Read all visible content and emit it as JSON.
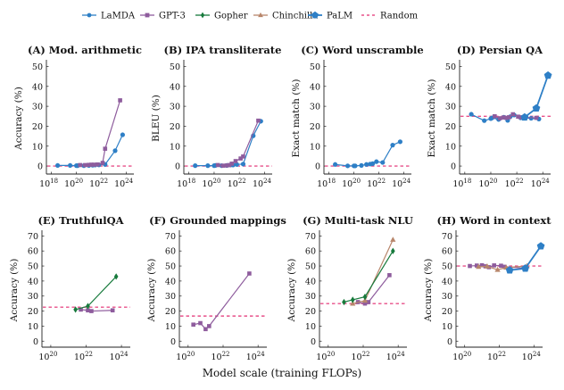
{
  "legend": [
    {
      "name": "LaMDA",
      "color": "#2e7fc6",
      "marker": "circle"
    },
    {
      "name": "GPT-3",
      "color": "#8e5c9d",
      "marker": "square"
    },
    {
      "name": "Gopher",
      "color": "#177a3c",
      "marker": "diamond"
    },
    {
      "name": "Chinchilla",
      "color": "#b8866b",
      "marker": "triangle"
    },
    {
      "name": "PaLM",
      "color": "#2e7fc6",
      "marker": "pentagon"
    },
    {
      "name": "Random",
      "color": "#e8508a",
      "marker": "dashed"
    }
  ],
  "global_xlabel": "Model scale (training FLOPs)",
  "chart_data": [
    {
      "type": "line",
      "title": "(A) Mod. arithmetic",
      "ylabel": "Accuracy (%)",
      "xlabel": "",
      "xscale": "log",
      "xlim_log10": [
        17.6,
        24.6
      ],
      "xticks_log10": [
        18,
        20,
        22,
        24
      ],
      "xtick_labels": [
        "10^18",
        "10^20",
        "10^22",
        "10^24"
      ],
      "ylim": [
        -4,
        52
      ],
      "yticks": [
        0,
        10,
        20,
        30,
        40,
        50
      ],
      "random": 0,
      "series": [
        {
          "name": "LaMDA",
          "x_log10": [
            18.5,
            19.5,
            20.0,
            20.1,
            20.6,
            21.0,
            21.3,
            21.5,
            21.8,
            22.3,
            23.1,
            23.7
          ],
          "y": [
            0.3,
            0.3,
            0.2,
            0.2,
            0.2,
            0.3,
            0.4,
            0.5,
            0.6,
            0.8,
            7.7,
            15.7
          ]
        },
        {
          "name": "GPT-3",
          "x_log10": [
            20.3,
            20.7,
            21.0,
            21.2,
            21.4,
            21.7,
            22.1,
            22.3,
            23.5
          ],
          "y": [
            0.5,
            0.5,
            0.6,
            0.7,
            0.7,
            0.8,
            1.6,
            8.7,
            33.0
          ]
        }
      ]
    },
    {
      "type": "line",
      "title": "(B) IPA transliterate",
      "ylabel": "BLEU (%)",
      "xlabel": "",
      "xscale": "log",
      "xlim_log10": [
        17.6,
        24.6
      ],
      "xticks_log10": [
        18,
        20,
        22,
        24
      ],
      "xtick_labels": [
        "10^18",
        "10^20",
        "10^22",
        "10^24"
      ],
      "ylim": [
        -4,
        52
      ],
      "yticks": [
        0,
        10,
        20,
        30,
        40,
        50
      ],
      "random": 0,
      "series": [
        {
          "name": "LaMDA",
          "x_log10": [
            18.5,
            19.5,
            20.0,
            20.1,
            20.6,
            21.0,
            21.3,
            21.5,
            21.8,
            22.3,
            23.1,
            23.7
          ],
          "y": [
            0.2,
            0.2,
            0.2,
            0.3,
            0.2,
            0.3,
            0.5,
            0.5,
            0.8,
            1.0,
            15.2,
            22.5
          ]
        },
        {
          "name": "GPT-3",
          "x_log10": [
            20.3,
            20.7,
            21.0,
            21.2,
            21.4,
            21.7,
            22.1,
            22.3,
            23.5
          ],
          "y": [
            0.5,
            0.2,
            0.3,
            0.5,
            1.2,
            2.5,
            3.8,
            4.8,
            22.8
          ]
        }
      ]
    },
    {
      "type": "line",
      "title": "(C) Word unscramble",
      "ylabel": "Exact match (%)",
      "xlabel": "",
      "xscale": "log",
      "xlim_log10": [
        17.6,
        24.6
      ],
      "xticks_log10": [
        18,
        20,
        22,
        24
      ],
      "xtick_labels": [
        "10^18",
        "10^20",
        "10^22",
        "10^24"
      ],
      "ylim": [
        -4,
        52
      ],
      "yticks": [
        0,
        10,
        20,
        30,
        40,
        50
      ],
      "random": 0,
      "series": [
        {
          "name": "LaMDA",
          "x_log10": [
            18.5,
            19.5,
            20.0,
            20.1,
            20.6,
            21.0,
            21.3,
            21.5,
            21.8,
            22.3,
            23.1,
            23.7
          ],
          "y": [
            0.8,
            0.1,
            0.1,
            0.1,
            0.3,
            0.8,
            1.0,
            1.2,
            2.2,
            1.8,
            10.5,
            12.2
          ]
        }
      ]
    },
    {
      "type": "line",
      "title": "(D) Persian QA",
      "ylabel": "Exact match (%)",
      "xlabel": "",
      "xscale": "log",
      "xlim_log10": [
        17.6,
        24.6
      ],
      "xticks_log10": [
        18,
        20,
        22,
        24
      ],
      "xtick_labels": [
        "10^18",
        "10^20",
        "10^22",
        "10^24"
      ],
      "ylim": [
        -4,
        52
      ],
      "yticks": [
        0,
        10,
        20,
        30,
        40,
        50
      ],
      "random": 25,
      "series": [
        {
          "name": "LaMDA",
          "x_log10": [
            18.5,
            19.5,
            20.0,
            20.1,
            20.6,
            21.0,
            21.3,
            21.5,
            21.8,
            22.3,
            23.1,
            23.7
          ],
          "y": [
            26.0,
            22.8,
            23.8,
            24.2,
            23.4,
            24.5,
            22.9,
            24.8,
            25.6,
            24.2,
            24.0,
            23.6
          ]
        },
        {
          "name": "GPT-3",
          "x_log10": [
            20.3,
            20.7,
            21.0,
            21.2,
            21.4,
            21.7,
            22.1,
            22.3,
            23.5
          ],
          "y": [
            25.0,
            24.0,
            24.4,
            24.2,
            24.5,
            26.0,
            24.8,
            24.5,
            24.2
          ]
        },
        {
          "name": "PaLM",
          "x_log10": [
            22.6,
            23.5,
            24.4
          ],
          "y": [
            24.5,
            29.0,
            45.5
          ]
        }
      ]
    },
    {
      "type": "line",
      "title": "(E) TruthfulQA",
      "ylabel": "Accuracy (%)",
      "xlabel": "",
      "xscale": "log",
      "xlim_log10": [
        19.5,
        24.5
      ],
      "xticks_log10": [
        20,
        22,
        24
      ],
      "xtick_labels": [
        "10^20",
        "10^22",
        "10^24"
      ],
      "ylim": [
        -4,
        72
      ],
      "yticks": [
        0,
        10,
        20,
        30,
        40,
        50,
        60,
        70
      ],
      "random": 22.6,
      "series": [
        {
          "name": "GPT-3",
          "x_log10": [
            21.7,
            22.1,
            22.3,
            23.5
          ],
          "y": [
            21.0,
            20.5,
            20.0,
            20.5
          ]
        },
        {
          "name": "Gopher",
          "x_log10": [
            21.4,
            22.1,
            23.7
          ],
          "y": [
            21.0,
            23.3,
            43.0
          ]
        }
      ]
    },
    {
      "type": "line",
      "title": "(F) Grounded mappings",
      "ylabel": "Accuracy (%)",
      "xlabel": "",
      "xscale": "log",
      "xlim_log10": [
        19.5,
        24.5
      ],
      "xticks_log10": [
        20,
        22,
        24
      ],
      "xtick_labels": [
        "10^20",
        "10^22",
        "10^24"
      ],
      "ylim": [
        -4,
        72
      ],
      "yticks": [
        0,
        10,
        20,
        30,
        40,
        50,
        60,
        70
      ],
      "random": 16.7,
      "series": [
        {
          "name": "GPT-3",
          "x_log10": [
            20.3,
            20.7,
            21.0,
            21.2,
            23.5
          ],
          "y": [
            11.0,
            12.0,
            8.0,
            10.0,
            45.0
          ]
        }
      ]
    },
    {
      "type": "line",
      "title": "(G) Multi-task NLU",
      "ylabel": "Accuracy (%)",
      "xlabel": "",
      "xscale": "log",
      "xlim_log10": [
        19.5,
        24.5
      ],
      "xticks_log10": [
        20,
        22,
        24
      ],
      "xtick_labels": [
        "10^20",
        "10^22",
        "10^24"
      ],
      "ylim": [
        -4,
        72
      ],
      "yticks": [
        0,
        10,
        20,
        30,
        40,
        50,
        60,
        70
      ],
      "random": 25,
      "series": [
        {
          "name": "GPT-3",
          "x_log10": [
            21.7,
            22.1,
            22.3,
            23.5
          ],
          "y": [
            26.0,
            25.0,
            26.0,
            43.9
          ]
        },
        {
          "name": "Chinchilla",
          "x_log10": [
            21.4,
            22.1,
            23.7
          ],
          "y": [
            25.0,
            27.0,
            67.5
          ]
        },
        {
          "name": "Gopher",
          "x_log10": [
            20.9,
            21.4,
            22.1,
            23.7
          ],
          "y": [
            26.0,
            27.5,
            29.5,
            60.0
          ]
        }
      ]
    },
    {
      "type": "line",
      "title": "(H) Word in context",
      "ylabel": "Accuracy (%)",
      "xlabel": "",
      "xscale": "log",
      "xlim_log10": [
        19.5,
        24.5
      ],
      "xticks_log10": [
        20,
        22,
        24
      ],
      "xtick_labels": [
        "10^20",
        "10^22",
        "10^24"
      ],
      "ylim": [
        -4,
        72
      ],
      "yticks": [
        0,
        10,
        20,
        30,
        40,
        50,
        60,
        70
      ],
      "random": 50,
      "series": [
        {
          "name": "GPT-3",
          "x_log10": [
            20.3,
            20.7,
            21.0,
            21.2,
            21.4,
            21.7,
            22.1,
            22.3,
            23.5
          ],
          "y": [
            50.0,
            50.3,
            50.5,
            49.8,
            49.2,
            50.4,
            50.2,
            49.5,
            48.5
          ]
        },
        {
          "name": "Chinchilla",
          "x_log10": [
            20.8,
            21.3,
            21.9,
            22.4,
            23.6
          ],
          "y": [
            49.5,
            49.8,
            47.5,
            49.0,
            50.0
          ]
        },
        {
          "name": "PaLM",
          "x_log10": [
            22.6,
            23.5,
            24.4
          ],
          "y": [
            47.2,
            48.4,
            63.2
          ]
        }
      ]
    }
  ]
}
